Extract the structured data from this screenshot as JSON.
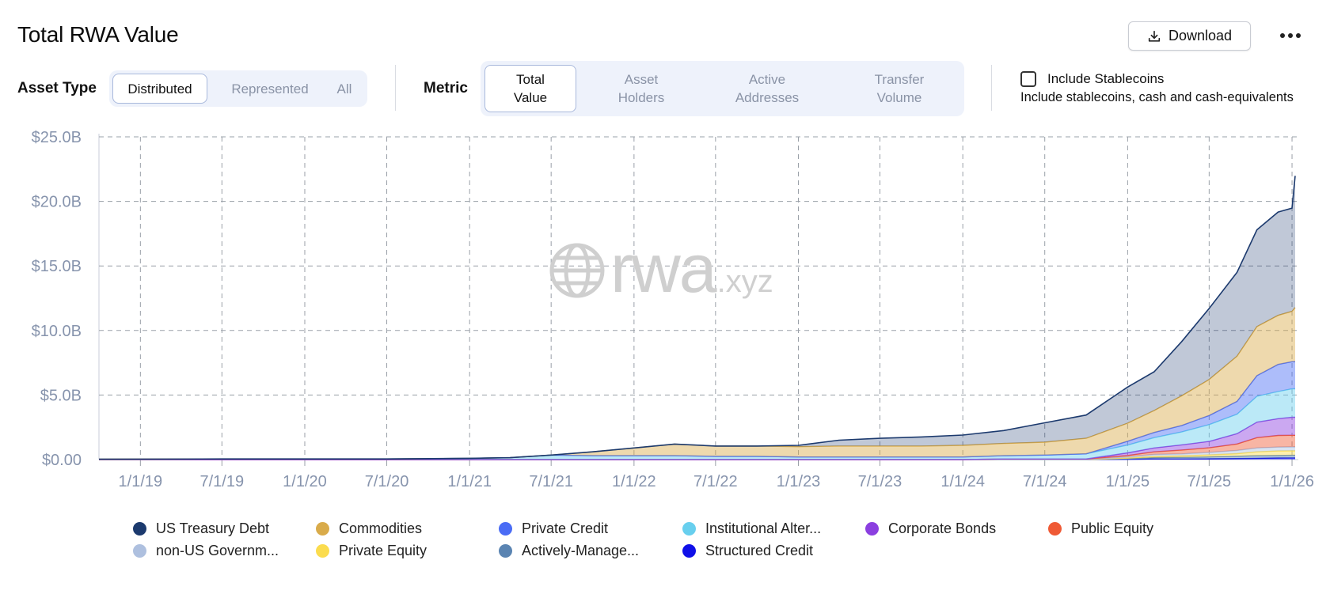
{
  "header": {
    "title": "Total RWA Value",
    "download_label": "Download"
  },
  "filters": {
    "asset_type_label": "Asset Type",
    "asset_type_options": [
      "Distributed",
      "Represented",
      "All"
    ],
    "asset_type_selected": "Distributed",
    "metric_label": "Metric",
    "metric_options": [
      {
        "line1": "Total",
        "line2": "Value"
      },
      {
        "line1": "Asset",
        "line2": "Holders"
      },
      {
        "line1": "Active",
        "line2": "Addresses"
      },
      {
        "line1": "Transfer",
        "line2": "Volume"
      }
    ],
    "metric_selected": "Total Value",
    "stablecoins_label": "Include Stablecoins",
    "stablecoins_desc": "Include stablecoins, cash and cash-equivalents",
    "stablecoins_checked": false
  },
  "watermark": {
    "main": "rwa",
    "suffix": ".xyz"
  },
  "chart_data": {
    "type": "area",
    "stacked": true,
    "ylim": [
      0,
      25
    ],
    "y_unit": "B",
    "y_ticks": [
      "$0.00",
      "$5.0B",
      "$10.0B",
      "$15.0B",
      "$20.0B",
      "$25.0B"
    ],
    "x_ticks": [
      "1/1/19",
      "7/1/19",
      "1/1/20",
      "7/1/20",
      "1/1/21",
      "7/1/21",
      "1/1/22",
      "7/1/22",
      "1/1/23",
      "7/1/23",
      "1/1/24",
      "7/1/24",
      "1/1/25",
      "7/1/25",
      "1/1/26"
    ],
    "x": [
      "2018-10-01",
      "2019-07-01",
      "2020-07-01",
      "2021-01-01",
      "2021-04-01",
      "2021-07-01",
      "2021-10-01",
      "2022-01-01",
      "2022-04-01",
      "2022-07-01",
      "2022-10-01",
      "2023-01-01",
      "2023-04-01",
      "2023-07-01",
      "2023-10-01",
      "2024-01-01",
      "2024-04-01",
      "2024-07-01",
      "2024-10-01",
      "2025-01-01",
      "2025-03-01",
      "2025-05-01",
      "2025-07-01",
      "2025-09-01",
      "2025-10-15",
      "2025-12-01",
      "2026-01-01",
      "2026-01-08"
    ],
    "series": [
      {
        "name": "Structured Credit",
        "color": "#1010e8",
        "values": [
          0,
          0,
          0,
          0,
          0,
          0,
          0,
          0,
          0,
          0,
          0,
          0,
          0,
          0,
          0,
          0,
          0,
          0,
          0,
          0.02,
          0.05,
          0.05,
          0.06,
          0.08,
          0.1,
          0.12,
          0.13,
          0.13
        ]
      },
      {
        "name": "Actively-Manage...",
        "color": "#5a84b2",
        "values": [
          0,
          0,
          0,
          0,
          0,
          0,
          0,
          0,
          0,
          0,
          0,
          0,
          0,
          0,
          0,
          0,
          0,
          0,
          0,
          0.05,
          0.1,
          0.12,
          0.15,
          0.18,
          0.2,
          0.2,
          0.2,
          0.2
        ]
      },
      {
        "name": "Private Equity",
        "color": "#fbdc4e",
        "values": [
          0,
          0,
          0,
          0,
          0,
          0,
          0,
          0,
          0,
          0,
          0,
          0,
          0,
          0,
          0,
          0,
          0,
          0,
          0,
          0.05,
          0.1,
          0.12,
          0.15,
          0.2,
          0.3,
          0.35,
          0.35,
          0.35
        ]
      },
      {
        "name": "non-US Governm...",
        "color": "#aec0df",
        "values": [
          0,
          0,
          0,
          0,
          0,
          0,
          0,
          0,
          0,
          0,
          0,
          0,
          0,
          0,
          0,
          0,
          0,
          0,
          0,
          0.1,
          0.15,
          0.15,
          0.2,
          0.25,
          0.3,
          0.3,
          0.3,
          0.3
        ]
      },
      {
        "name": "Public Equity",
        "color": "#ef5a35",
        "values": [
          0,
          0,
          0,
          0,
          0,
          0,
          0,
          0,
          0,
          0,
          0,
          0,
          0,
          0,
          0,
          0,
          0.05,
          0.05,
          0.05,
          0.1,
          0.2,
          0.3,
          0.35,
          0.5,
          0.8,
          0.9,
          0.9,
          0.9
        ]
      },
      {
        "name": "Corporate Bonds",
        "color": "#8b3fe0",
        "values": [
          0,
          0,
          0,
          0,
          0,
          0,
          0,
          0,
          0,
          0,
          0,
          0,
          0,
          0,
          0,
          0,
          0,
          0,
          0,
          0.2,
          0.3,
          0.4,
          0.5,
          0.8,
          1.2,
          1.3,
          1.4,
          1.4
        ]
      },
      {
        "name": "Institutional Alter...",
        "color": "#68cfee",
        "values": [
          0.03,
          0.05,
          0.05,
          0.1,
          0.15,
          0.35,
          0.3,
          0.3,
          0.3,
          0.25,
          0.25,
          0.2,
          0.2,
          0.2,
          0.2,
          0.2,
          0.25,
          0.3,
          0.4,
          0.6,
          0.8,
          1.0,
          1.3,
          1.5,
          2.0,
          2.1,
          2.2,
          2.2
        ]
      },
      {
        "name": "Private Credit",
        "color": "#4a6cf5",
        "values": [
          0,
          0,
          0,
          0,
          0,
          0,
          0,
          0,
          0,
          0,
          0,
          0,
          0,
          0,
          0,
          0,
          0,
          0,
          0,
          0.3,
          0.4,
          0.5,
          0.7,
          1.0,
          1.6,
          2.1,
          2.1,
          2.1
        ]
      },
      {
        "name": "Commodities",
        "color": "#d9ab4a",
        "values": [
          0,
          0,
          0,
          0,
          0,
          0,
          0.3,
          0.6,
          0.9,
          0.8,
          0.8,
          0.8,
          0.85,
          0.85,
          0.85,
          0.9,
          0.95,
          1.0,
          1.2,
          1.4,
          1.7,
          2.3,
          2.8,
          3.5,
          3.8,
          3.8,
          3.9,
          4.2
        ]
      },
      {
        "name": "US Treasury Debt",
        "color": "#1c3a6e",
        "values": [
          0,
          0,
          0,
          0,
          0,
          0,
          0,
          0,
          0,
          0,
          0,
          0.1,
          0.45,
          0.6,
          0.7,
          0.8,
          1.0,
          1.5,
          1.8,
          2.8,
          3.0,
          4.2,
          5.5,
          6.5,
          7.5,
          8.0,
          8.0,
          10.2
        ]
      }
    ],
    "legend_placement": "bottom",
    "grid": true
  },
  "legend": [
    {
      "name": "US Treasury Debt",
      "color": "#1c3a6e"
    },
    {
      "name": "Commodities",
      "color": "#d9ab4a"
    },
    {
      "name": "Private Credit",
      "color": "#4a6cf5"
    },
    {
      "name": "Institutional Alter...",
      "color": "#68cfee"
    },
    {
      "name": "Corporate Bonds",
      "color": "#8b3fe0"
    },
    {
      "name": "Public Equity",
      "color": "#ef5a35"
    },
    {
      "name": "non-US Governm...",
      "color": "#aec0df"
    },
    {
      "name": "Private Equity",
      "color": "#fbdc4e"
    },
    {
      "name": "Actively-Manage...",
      "color": "#5a84b2"
    },
    {
      "name": "Structured Credit",
      "color": "#1010e8"
    }
  ]
}
